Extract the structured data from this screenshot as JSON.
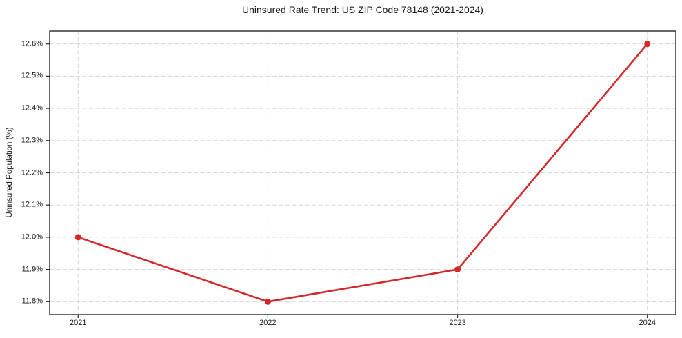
{
  "chart_data": {
    "type": "line",
    "title": "Uninsured Rate Trend: US ZIP Code 78148 (2021-2024)",
    "xlabel": "",
    "ylabel": "Uninsured Population (%)",
    "x": [
      2021,
      2022,
      2023,
      2024
    ],
    "y": [
      12.0,
      11.8,
      11.9,
      12.6
    ],
    "xtick_labels": [
      "2021",
      "2022",
      "2023",
      "2024"
    ],
    "ytick_values": [
      11.8,
      11.9,
      12.0,
      12.1,
      12.2,
      12.3,
      12.4,
      12.5,
      12.6
    ],
    "ytick_labels": [
      "11.8%",
      "11.9%",
      "12.0%",
      "12.1%",
      "12.2%",
      "12.3%",
      "12.4%",
      "12.5%",
      "12.6%"
    ],
    "xlim": [
      2020.85,
      2024.15
    ],
    "ylim": [
      11.76,
      12.64
    ],
    "grid": true,
    "grid_style": "dashed",
    "legend": "none",
    "marker": "circle",
    "colors": {
      "line": "#d62728",
      "grid": "#d5d5d5",
      "axis": "#262626",
      "text": "#1a1a1a",
      "background": "#ffffff"
    }
  }
}
